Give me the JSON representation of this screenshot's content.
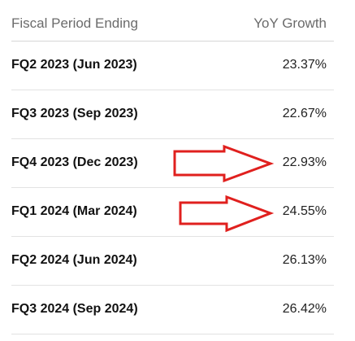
{
  "table": {
    "headers": {
      "period": "Fiscal Period Ending",
      "growth": "YoY Growth"
    },
    "rows": [
      {
        "period": "FQ2 2023 (Jun 2023)",
        "growth": "23.37%"
      },
      {
        "period": "FQ3 2023 (Sep 2023)",
        "growth": "22.67%"
      },
      {
        "period": "FQ4 2023 (Dec 2023)",
        "growth": "22.93%"
      },
      {
        "period": "FQ1 2024 (Mar 2024)",
        "growth": "24.55%"
      },
      {
        "period": "FQ2 2024 (Jun 2024)",
        "growth": "26.13%"
      },
      {
        "period": "FQ3 2024 (Sep 2024)",
        "growth": "26.42%"
      }
    ]
  },
  "annotations": {
    "arrow_color": "#e0201e"
  }
}
